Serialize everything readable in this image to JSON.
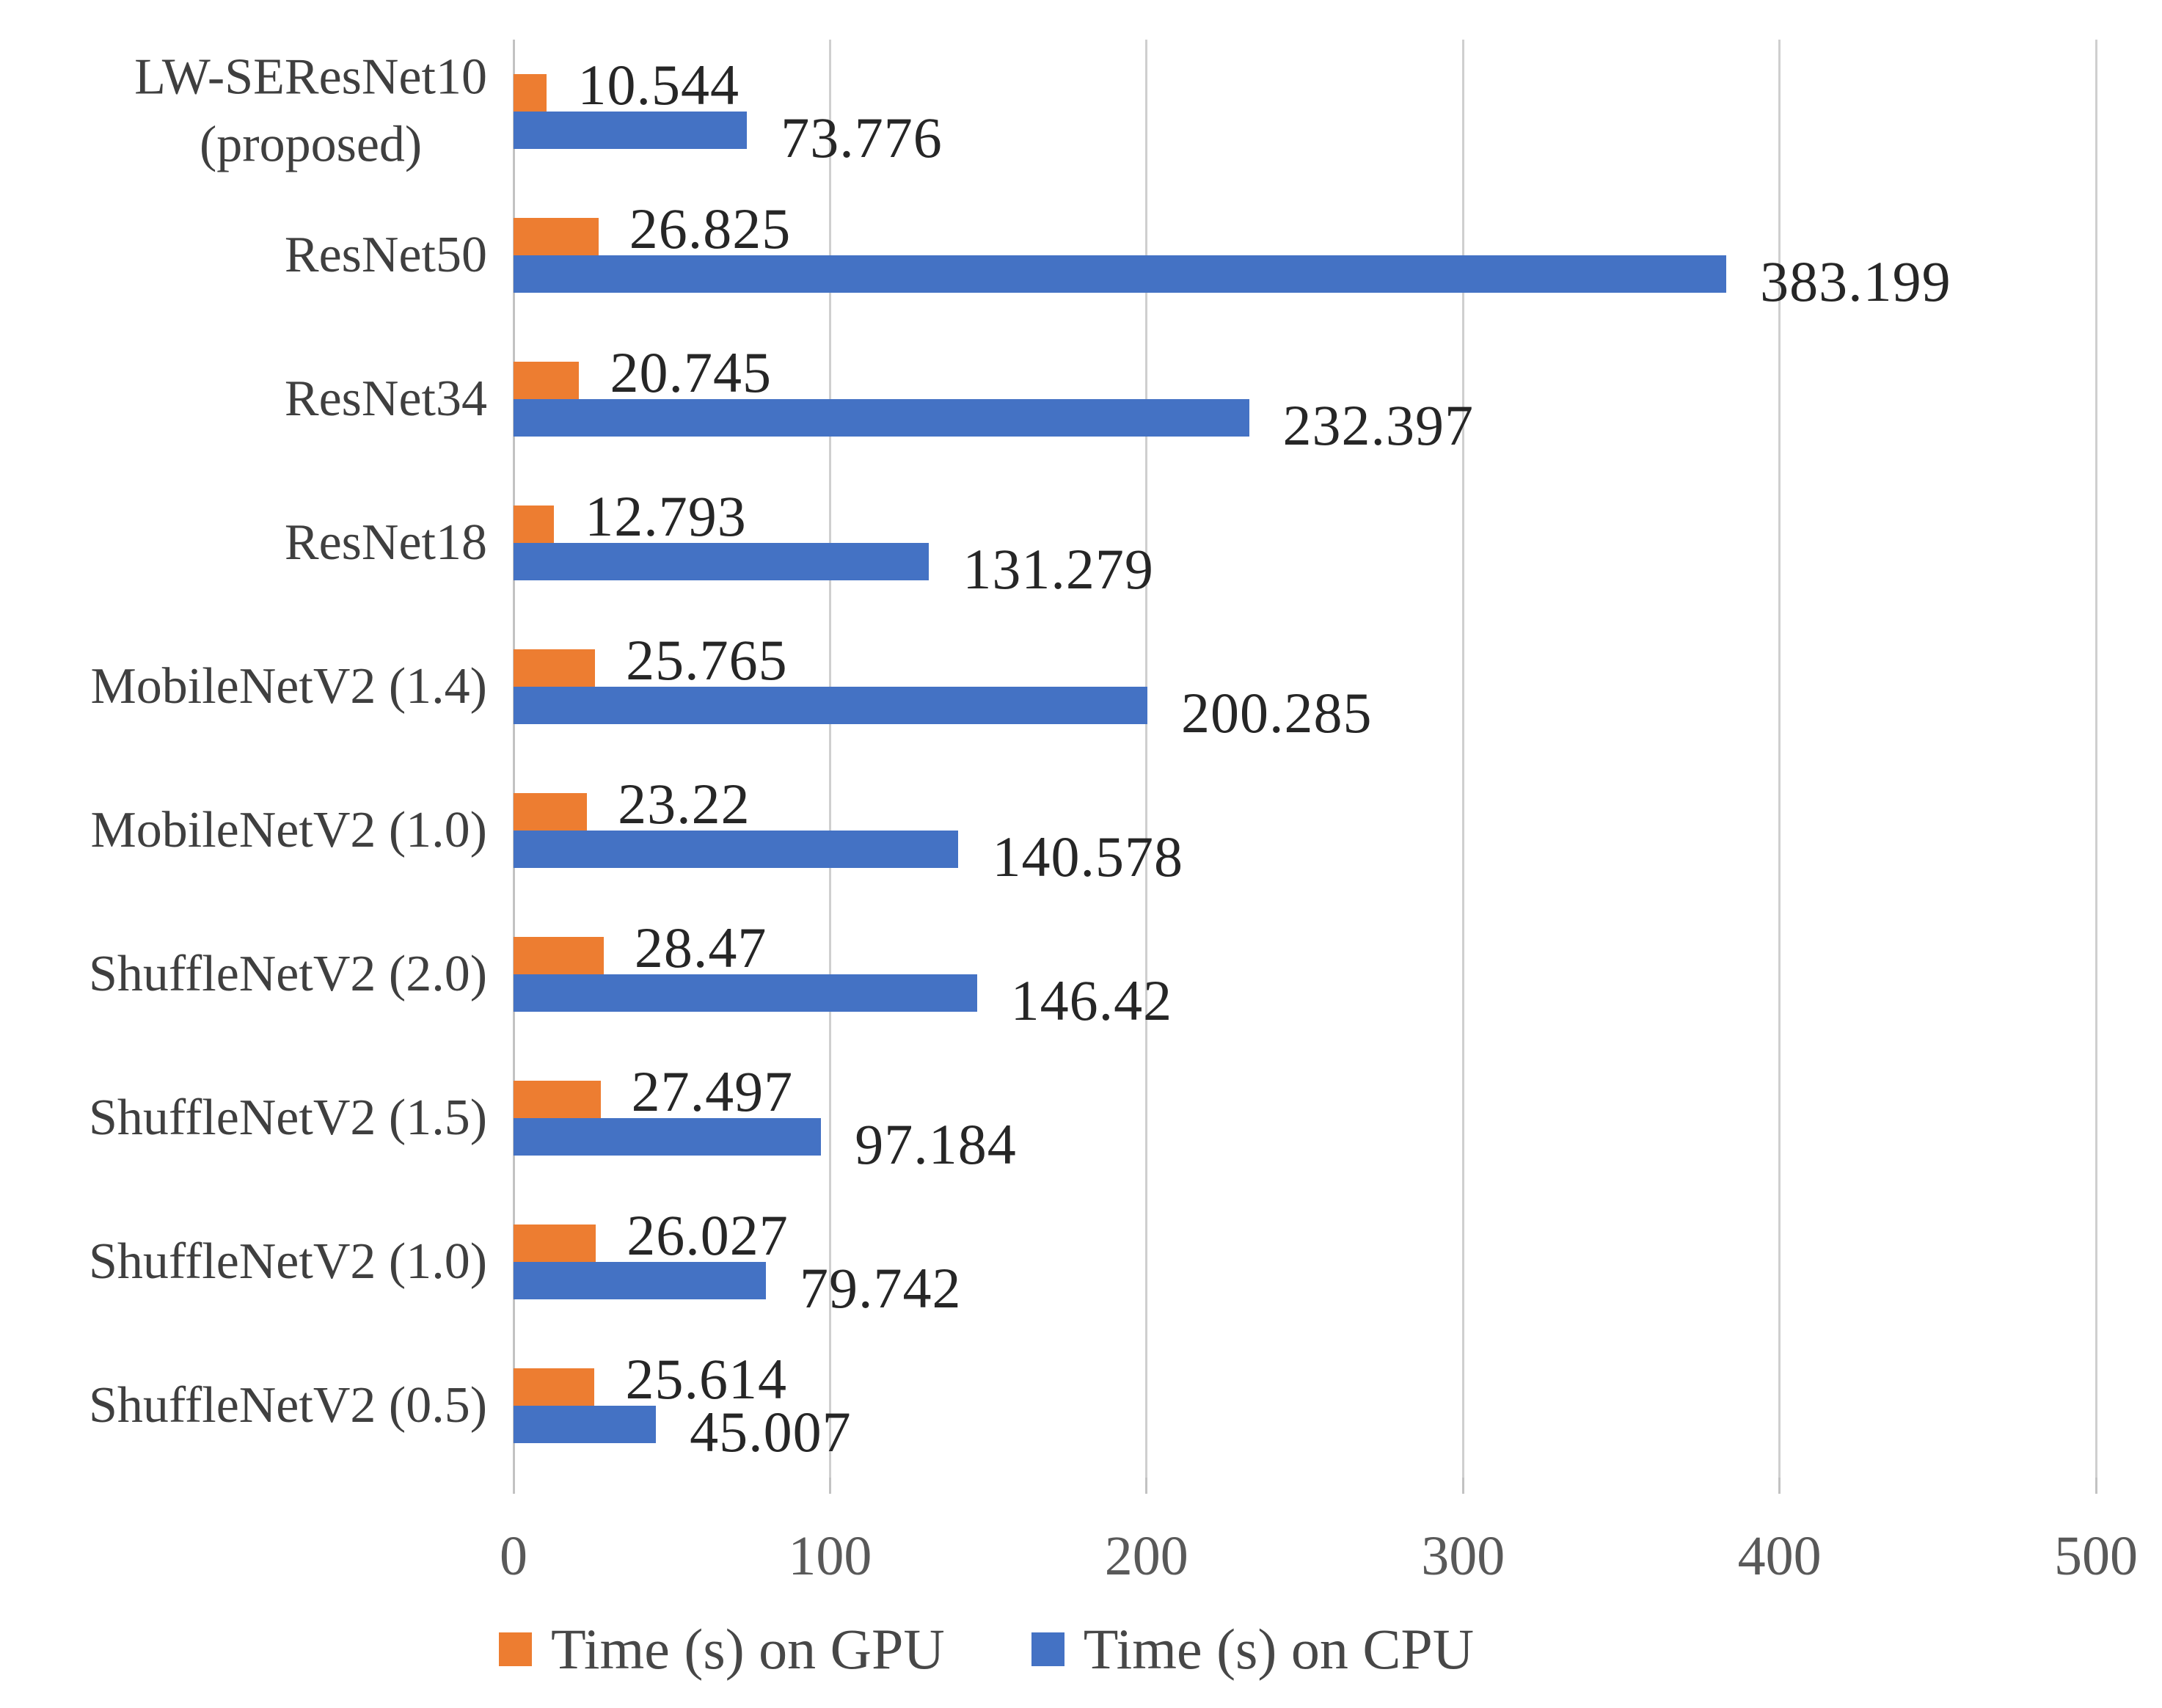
{
  "chart_data": {
    "type": "bar",
    "orientation": "horizontal",
    "title": "",
    "categories": [
      "LW-SEResNet10\n(proposed)",
      "ResNet50",
      "ResNet34",
      "ResNet18",
      "MobileNetV2 (1.4)",
      "MobileNetV2 (1.0)",
      "ShuffleNetV2 (2.0)",
      "ShuffleNetV2 (1.5)",
      "ShuffleNetV2 (1.0)",
      "ShuffleNetV2 (0.5)"
    ],
    "series": [
      {
        "name": "Time (s) on GPU",
        "color": "#ED7D31",
        "values": [
          10.544,
          26.825,
          20.745,
          12.793,
          25.765,
          23.22,
          28.47,
          27.497,
          26.027,
          25.614
        ]
      },
      {
        "name": "Time (s) on CPU",
        "color": "#4472C4",
        "values": [
          73.776,
          383.199,
          232.397,
          131.279,
          200.285,
          140.578,
          146.42,
          97.184,
          79.742,
          45.007
        ]
      }
    ],
    "xlim": [
      0,
      500
    ],
    "x_ticks": [
      "0",
      "100",
      "200",
      "300",
      "400",
      "500"
    ],
    "grid": true,
    "value_labels": true,
    "legend_position": "bottom",
    "colors": {
      "grid": "#CFCFCF",
      "axis": "#C2C2C2",
      "tick_text": "#595959",
      "category_text": "#3F3F3F",
      "value_text": "#262626",
      "legend_text": "#474747",
      "background": "#FFFFFF"
    }
  }
}
